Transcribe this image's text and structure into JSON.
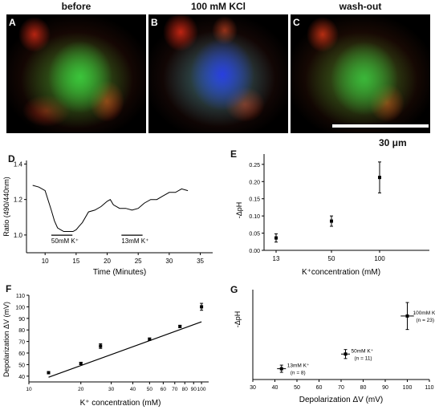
{
  "top_panels": {
    "titles": [
      "before",
      "100 mM KCl",
      "wash-out"
    ],
    "labels": [
      "A",
      "B",
      "C"
    ],
    "scale_label": "30 μm"
  },
  "panel_labels": {
    "D": "D",
    "E": "E",
    "F": "F",
    "G": "G"
  },
  "colors": {
    "trace": "#000000",
    "background": "#ffffff"
  },
  "chart_data": [
    {
      "id": "D",
      "type": "line",
      "xlabel": "Time (Minutes)",
      "ylabel": "Ratio (490/440nm)",
      "xlim": [
        7,
        37
      ],
      "ylim": [
        0.9,
        1.42
      ],
      "x_ticks": [
        "10",
        "15",
        "20",
        "25",
        "30",
        "35"
      ],
      "y_ticks": [
        "1.0",
        "1.2",
        "1.4"
      ],
      "annotations": [
        {
          "text": "50mM K⁺",
          "x_start": 11,
          "x_end": 14.4,
          "y": 0.99
        },
        {
          "text": "13mM K⁺",
          "x_start": 22.3,
          "x_end": 25.7,
          "y": 0.99
        }
      ],
      "series": [
        {
          "x": [
            8,
            9,
            10,
            11,
            11.5,
            12,
            12.5,
            13,
            13.5,
            14,
            14.5,
            15,
            15.5,
            16,
            17,
            18,
            19,
            20,
            20.5,
            21,
            22,
            23,
            24,
            25,
            26,
            27,
            28,
            29,
            30,
            31,
            32,
            33
          ],
          "y": [
            1.28,
            1.27,
            1.25,
            1.14,
            1.08,
            1.04,
            1.03,
            1.02,
            1.02,
            1.02,
            1.02,
            1.03,
            1.05,
            1.07,
            1.13,
            1.14,
            1.16,
            1.19,
            1.2,
            1.17,
            1.15,
            1.15,
            1.14,
            1.15,
            1.18,
            1.2,
            1.2,
            1.22,
            1.24,
            1.24,
            1.26,
            1.25
          ]
        }
      ]
    },
    {
      "id": "E",
      "type": "scatter",
      "xlabel": "K⁺concentration (mM)",
      "ylabel": "-ΔpH",
      "categories": [
        "13",
        "50",
        "100"
      ],
      "ylim": [
        0,
        0.28
      ],
      "y_ticks": [
        "0.00",
        "0.05",
        "0.10",
        "0.15",
        "0.20",
        "0.25"
      ],
      "values": [
        0.036,
        0.085,
        0.212
      ],
      "errors": [
        0.012,
        0.015,
        0.045
      ]
    },
    {
      "id": "F",
      "type": "scatter",
      "xlabel": "K⁺ concentration (mM)",
      "ylabel": "Depolarization ΔV (mV)",
      "xscale": "log",
      "xlim": [
        10,
        110
      ],
      "ylim": [
        35,
        110
      ],
      "x_ticks": [
        "10",
        "20",
        "30",
        "40",
        "50",
        "60",
        "70",
        "80",
        "90",
        "100"
      ],
      "y_ticks": [
        "40",
        "50",
        "60",
        "70",
        "80",
        "90",
        "100",
        "110"
      ],
      "points": [
        {
          "x": 13,
          "y": 43,
          "err": 1
        },
        {
          "x": 20,
          "y": 51,
          "err": 1
        },
        {
          "x": 26,
          "y": 66,
          "err": 2
        },
        {
          "x": 50,
          "y": 72,
          "err": 1
        },
        {
          "x": 75,
          "y": 83,
          "err": 1
        },
        {
          "x": 100,
          "y": 100,
          "err": 3
        }
      ],
      "fit": {
        "x": [
          13,
          100
        ],
        "y": [
          39,
          87
        ]
      }
    },
    {
      "id": "G",
      "type": "scatter",
      "xlabel": "Depolarization ΔV (mV)",
      "ylabel": "-ΔpH",
      "xlim": [
        30,
        110
      ],
      "ylim": [
        0,
        0.3
      ],
      "x_ticks": [
        "30",
        "40",
        "50",
        "60",
        "70",
        "80",
        "90",
        "100",
        "110"
      ],
      "points": [
        {
          "x": 43,
          "y": 0.036,
          "xerr": 2,
          "yerr": 0.012,
          "label": "13mM K⁺",
          "sub": "(n = 8)"
        },
        {
          "x": 72,
          "y": 0.085,
          "xerr": 2,
          "yerr": 0.015,
          "label": "50mM K⁺",
          "sub": "(n = 11)"
        },
        {
          "x": 100,
          "y": 0.212,
          "xerr": 3,
          "yerr": 0.045,
          "label": "100mM K⁺",
          "sub": "(n = 23)"
        }
      ]
    }
  ]
}
